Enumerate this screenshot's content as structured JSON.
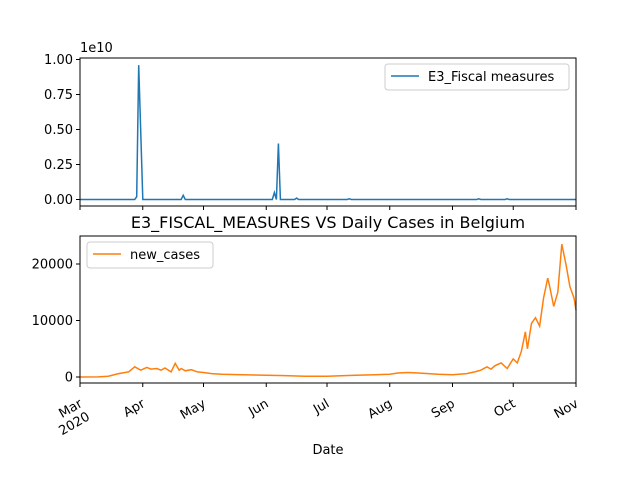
{
  "chart_data": [
    {
      "type": "line",
      "title": "",
      "xlabel": "",
      "ylabel": "",
      "y_offset_label": "1e10",
      "yticks": [
        "0.00",
        "0.25",
        "0.50",
        "0.75",
        "1.00"
      ],
      "ylim": [
        0,
        1.0
      ],
      "legend_position": "upper right",
      "grid": false,
      "series": [
        {
          "name": "E3_Fiscal measures",
          "color": "#1f77b4",
          "x": [
            "2020-03-01",
            "2020-03-28",
            "2020-03-29",
            "2020-03-30",
            "2020-04-01",
            "2020-04-02",
            "2020-04-03",
            "2020-04-20",
            "2020-04-21",
            "2020-04-22",
            "2020-05-01",
            "2020-06-04",
            "2020-06-05",
            "2020-06-06",
            "2020-06-07",
            "2020-06-08",
            "2020-06-09",
            "2020-06-10",
            "2020-06-15",
            "2020-06-16",
            "2020-06-17",
            "2020-07-11",
            "2020-07-12",
            "2020-07-13",
            "2020-09-13",
            "2020-09-14",
            "2020-09-15",
            "2020-09-27",
            "2020-09-28",
            "2020-09-29",
            "2020-11-01"
          ],
          "values": [
            0,
            0,
            0.02,
            0.96,
            0,
            0,
            0,
            0,
            0.03,
            0,
            0,
            0,
            0.05,
            0,
            0.4,
            0,
            0,
            0,
            0,
            0.01,
            0,
            0,
            0.005,
            0,
            0,
            0.005,
            0,
            0,
            0.005,
            0,
            0
          ]
        }
      ]
    },
    {
      "type": "line",
      "title": "E3_FISCAL_MEASURES VS Daily Cases in Belgium",
      "xlabel": "Date",
      "ylabel": "",
      "yticks": [
        "0",
        "10000",
        "20000"
      ],
      "ylim": [
        0,
        25000
      ],
      "xticks": [
        "Mar\n2020",
        "Apr",
        "May",
        "Jun",
        "Jul",
        "Aug",
        "Sep",
        "Oct",
        "Nov"
      ],
      "legend_position": "upper left",
      "grid": false,
      "series": [
        {
          "name": "new_cases",
          "color": "#ff7f0e",
          "x": [
            "2020-03-01",
            "2020-03-10",
            "2020-03-15",
            "2020-03-20",
            "2020-03-25",
            "2020-03-28",
            "2020-03-31",
            "2020-04-03",
            "2020-04-05",
            "2020-04-08",
            "2020-04-10",
            "2020-04-12",
            "2020-04-15",
            "2020-04-17",
            "2020-04-19",
            "2020-04-20",
            "2020-04-22",
            "2020-04-25",
            "2020-04-28",
            "2020-05-01",
            "2020-05-05",
            "2020-05-10",
            "2020-05-15",
            "2020-05-20",
            "2020-06-01",
            "2020-06-10",
            "2020-06-20",
            "2020-07-01",
            "2020-07-15",
            "2020-07-25",
            "2020-08-01",
            "2020-08-05",
            "2020-08-10",
            "2020-08-15",
            "2020-08-20",
            "2020-08-25",
            "2020-09-01",
            "2020-09-08",
            "2020-09-12",
            "2020-09-15",
            "2020-09-18",
            "2020-09-20",
            "2020-09-22",
            "2020-09-25",
            "2020-09-28",
            "2020-10-01",
            "2020-10-03",
            "2020-10-05",
            "2020-10-07",
            "2020-10-08",
            "2020-10-10",
            "2020-10-12",
            "2020-10-14",
            "2020-10-16",
            "2020-10-18",
            "2020-10-19",
            "2020-10-21",
            "2020-10-23",
            "2020-10-25",
            "2020-10-27",
            "2020-10-29",
            "2020-10-31",
            "2020-11-01"
          ],
          "values": [
            0,
            20,
            150,
            600,
            900,
            1800,
            1200,
            1700,
            1400,
            1500,
            1200,
            1600,
            900,
            2400,
            1200,
            1500,
            1100,
            1300,
            900,
            800,
            600,
            500,
            450,
            400,
            300,
            250,
            150,
            150,
            300,
            400,
            500,
            700,
            800,
            700,
            600,
            500,
            400,
            600,
            900,
            1200,
            1800,
            1400,
            2000,
            2500,
            1500,
            3200,
            2500,
            4500,
            8000,
            5000,
            9500,
            10500,
            9000,
            14000,
            17500,
            16000,
            12500,
            15000,
            23500,
            20000,
            16000,
            14000,
            11800
          ]
        }
      ]
    }
  ]
}
